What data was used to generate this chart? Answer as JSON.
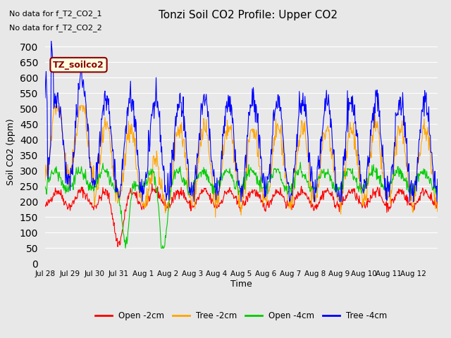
{
  "title": "Tonzi Soil CO2 Profile: Upper CO2",
  "ylabel": "Soil CO2 (ppm)",
  "xlabel": "Time",
  "annotation_lines": [
    "No data for f_T2_CO2_1",
    "No data for f_T2_CO2_2"
  ],
  "annotation_box_label": "TZ_soilco2",
  "ylim": [
    0,
    720
  ],
  "yticks": [
    0,
    50,
    100,
    150,
    200,
    250,
    300,
    350,
    400,
    450,
    500,
    550,
    600,
    650,
    700
  ],
  "xtick_labels": [
    "Jul 28",
    "Jul 29",
    "Jul 30",
    "Jul 31",
    "Aug 1",
    "Aug 2",
    "Aug 3",
    "Aug 4",
    "Aug 5",
    "Aug 6",
    "Aug 7",
    "Aug 8",
    "Aug 9",
    "Aug 10",
    "Aug 11",
    "Aug 12"
  ],
  "colors": {
    "open_2cm": "#ff0000",
    "tree_2cm": "#ffa500",
    "open_4cm": "#00cc00",
    "tree_4cm": "#0000ff"
  },
  "legend_labels": [
    "Open -2cm",
    "Tree -2cm",
    "Open -4cm",
    "Tree -4cm"
  ],
  "background_color": "#e8e8e8",
  "plot_bg_color": "#e8e8e8",
  "grid_color": "#ffffff"
}
